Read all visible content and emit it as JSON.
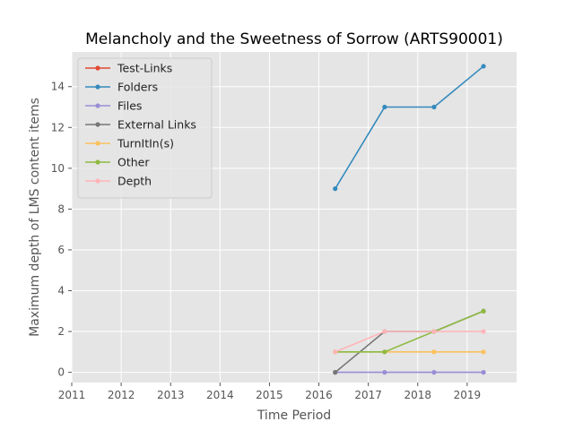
{
  "chart_data": {
    "type": "line",
    "title": "Melancholy and the Sweetness of Sorrow (ARTS90001)",
    "xlabel": "Time Period",
    "ylabel": "Maximum depth of LMS content items",
    "xlim": [
      2011,
      2020
    ],
    "ylim": [
      -0.5,
      15.7
    ],
    "xticks": [
      2011,
      2012,
      2013,
      2014,
      2015,
      2016,
      2017,
      2018,
      2019
    ],
    "yticks": [
      0,
      2,
      4,
      6,
      8,
      10,
      12,
      14
    ],
    "grid": true,
    "legend_position": "top-left",
    "x": [
      2016.33,
      2017.33,
      2018.33,
      2019.33
    ],
    "series": [
      {
        "name": "Test-Links",
        "color": "#E24A33",
        "values": [
          null,
          null,
          null,
          null
        ]
      },
      {
        "name": "Folders",
        "color": "#348ABD",
        "values": [
          9,
          13,
          13,
          15
        ]
      },
      {
        "name": "Files",
        "color": "#988ED5",
        "values": [
          0,
          0,
          0,
          0
        ]
      },
      {
        "name": "External Links",
        "color": "#777777",
        "values": [
          0,
          2,
          2,
          3
        ]
      },
      {
        "name": "TurnItIn(s)",
        "color": "#FBC15E",
        "values": [
          1,
          1,
          1,
          1
        ]
      },
      {
        "name": "Other",
        "color": "#8EBA42",
        "values": [
          1,
          1,
          2,
          3
        ]
      },
      {
        "name": "Depth",
        "color": "#FFB5B8",
        "values": [
          1,
          2,
          2,
          2
        ]
      }
    ]
  }
}
